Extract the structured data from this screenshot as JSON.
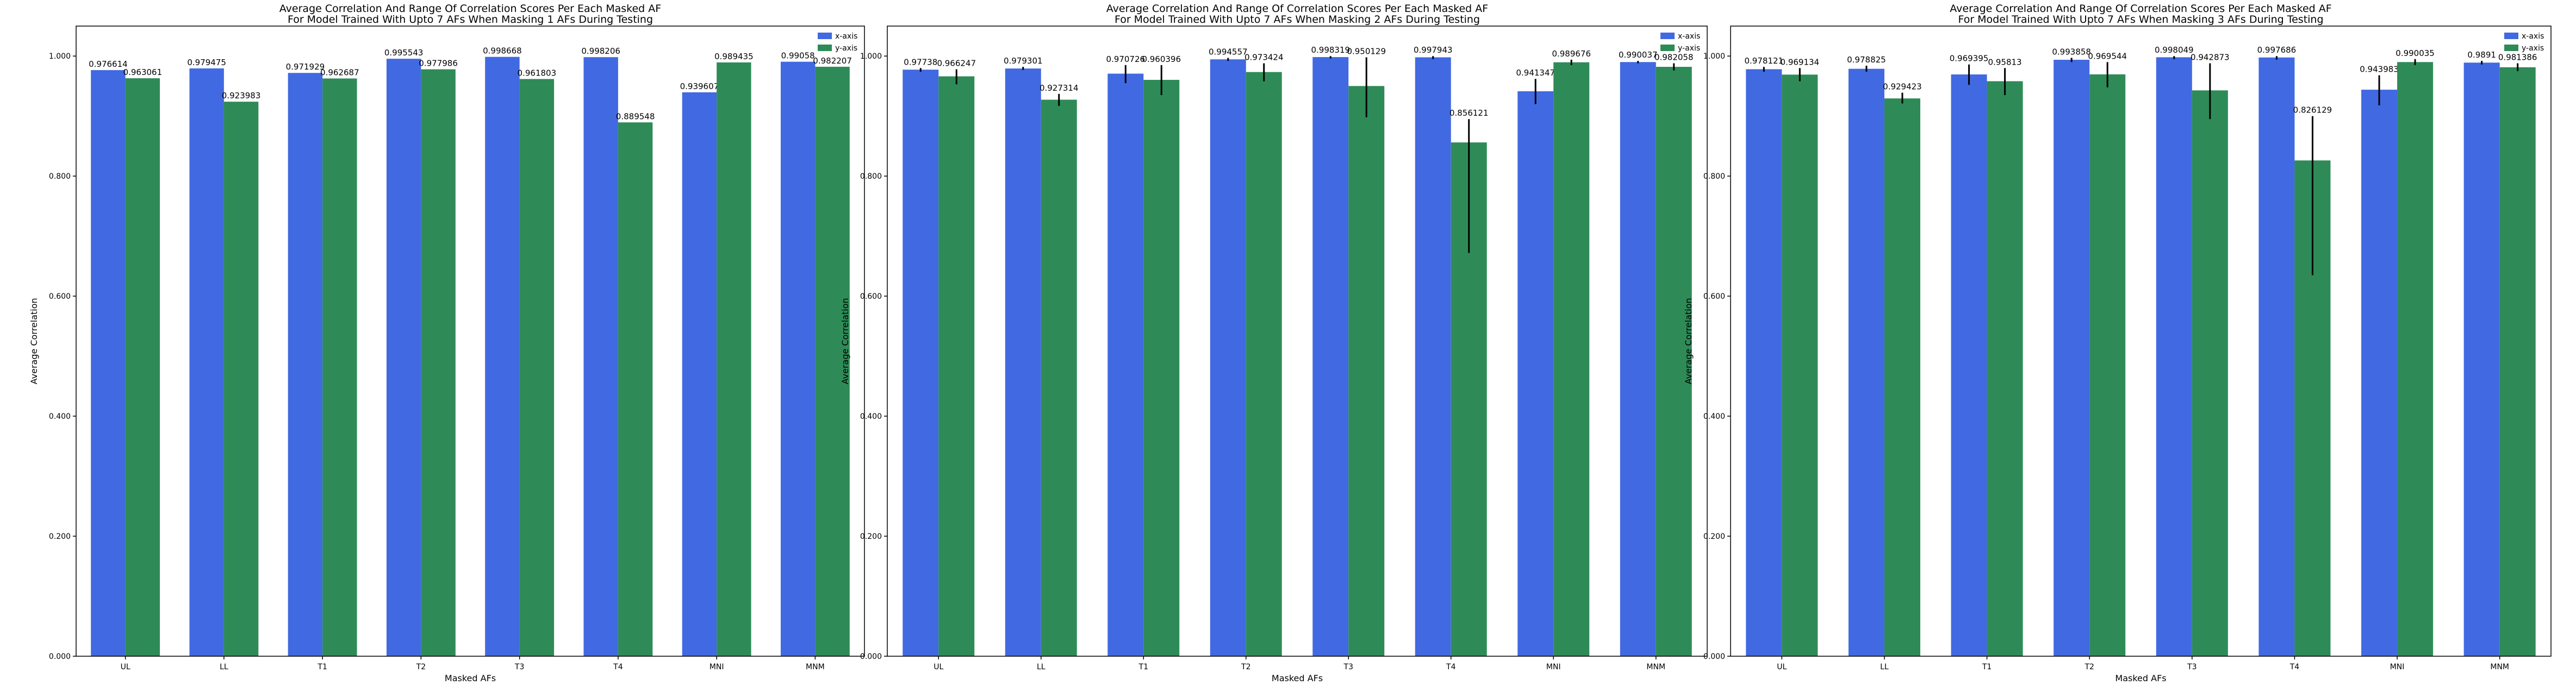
{
  "chart_data": [
    {
      "type": "bar",
      "title_lines": [
        "Average Correlation And Range Of Correlation Scores Per Each Masked AF",
        "For Model Trained With Upto 7 AFs When Masking 1 AFs During Testing"
      ],
      "xlabel": "Masked AFs",
      "ylabel": "Average Correlation",
      "ylim": [
        0,
        1.05
      ],
      "yticks": [
        "0.000",
        "0.200",
        "0.400",
        "0.600",
        "0.800",
        "1.000"
      ],
      "categories": [
        "UL",
        "LL",
        "T1",
        "T2",
        "T3",
        "T4",
        "MNI",
        "MNM"
      ],
      "legend_position": "top-right",
      "series": [
        {
          "name": "x-axis",
          "color": "#4169E1",
          "values": [
            0.976614,
            0.979475,
            0.971929,
            0.995543,
            0.998668,
            0.998206,
            0.939607,
            0.99058
          ],
          "labels": [
            "0.976614",
            "0.979475",
            "0.971929",
            "0.995543",
            "0.998668",
            "0.998206",
            "0.939607",
            "0.99058"
          ],
          "err_low": [
            0.976614,
            0.979475,
            0.971929,
            0.995543,
            0.998668,
            0.998206,
            0.939607,
            0.99058
          ],
          "err_high": [
            0.976614,
            0.979475,
            0.971929,
            0.995543,
            0.998668,
            0.998206,
            0.939607,
            0.99058
          ]
        },
        {
          "name": "y-axis",
          "color": "#2E8B57",
          "values": [
            0.963061,
            0.923983,
            0.962687,
            0.977986,
            0.961803,
            0.889548,
            0.989435,
            0.982207
          ],
          "labels": [
            "0.963061",
            "0.923983",
            "0.962687",
            "0.977986",
            "0.961803",
            "0.889548",
            "0.989435",
            "0.982207"
          ],
          "err_low": [
            0.963061,
            0.923983,
            0.962687,
            0.977986,
            0.961803,
            0.889548,
            0.989435,
            0.982207
          ],
          "err_high": [
            0.963061,
            0.923983,
            0.962687,
            0.977986,
            0.961803,
            0.889548,
            0.989435,
            0.982207
          ]
        }
      ]
    },
    {
      "type": "bar",
      "title_lines": [
        "Average Correlation And Range Of Correlation Scores Per Each Masked AF",
        "For Model Trained With Upto 7 AFs When Masking 2 AFs During Testing"
      ],
      "xlabel": "Masked AFs",
      "ylabel": "Average Correlation",
      "ylim": [
        0,
        1.05
      ],
      "yticks": [
        "0.000",
        "0.200",
        "0.400",
        "0.600",
        "0.800",
        "1.000"
      ],
      "categories": [
        "UL",
        "LL",
        "T1",
        "T2",
        "T3",
        "T4",
        "MNI",
        "MNM"
      ],
      "legend_position": "top-right",
      "series": [
        {
          "name": "x-axis",
          "color": "#4169E1",
          "values": [
            0.97738,
            0.979301,
            0.970726,
            0.994557,
            0.998319,
            0.997943,
            0.941347,
            0.990037
          ],
          "labels": [
            "0.97738",
            "0.979301",
            "0.970726",
            "0.994557",
            "0.998319",
            "0.997943",
            "0.941347",
            "0.990037"
          ],
          "err_low": [
            0.974,
            0.977,
            0.955,
            0.992,
            0.996,
            0.995,
            0.92,
            0.988
          ],
          "err_high": [
            0.98,
            0.982,
            0.985,
            0.997,
            1.0,
            1.0,
            0.962,
            0.992
          ]
        },
        {
          "name": "y-axis",
          "color": "#2E8B57",
          "values": [
            0.966247,
            0.927314,
            0.960396,
            0.973424,
            0.950129,
            0.856121,
            0.989676,
            0.982058
          ],
          "labels": [
            "0.966247",
            "0.927314",
            "0.960396",
            "0.973424",
            "0.950129",
            "0.856121",
            "0.989676",
            "0.982058"
          ],
          "err_low": [
            0.953,
            0.917,
            0.935,
            0.958,
            0.898,
            0.672,
            0.985,
            0.976
          ],
          "err_high": [
            0.978,
            0.937,
            0.985,
            0.988,
            0.998,
            0.895,
            0.994,
            0.988
          ]
        }
      ]
    },
    {
      "type": "bar",
      "title_lines": [
        "Average Correlation And Range Of Correlation Scores Per Each Masked AF",
        "For Model Trained With Upto 7 AFs When Masking 3 AFs During Testing"
      ],
      "xlabel": "Masked AFs",
      "ylabel": "Average Correlation",
      "ylim": [
        0,
        1.05
      ],
      "yticks": [
        "0.000",
        "0.200",
        "0.400",
        "0.600",
        "0.800",
        "1.000"
      ],
      "categories": [
        "UL",
        "LL",
        "T1",
        "T2",
        "T3",
        "T4",
        "MNI",
        "MNM"
      ],
      "legend_position": "top-right",
      "series": [
        {
          "name": "x-axis",
          "color": "#4169E1",
          "values": [
            0.978121,
            0.978825,
            0.969395,
            0.993858,
            0.998049,
            0.997686,
            0.943983,
            0.9891
          ],
          "labels": [
            "0.978121",
            "0.978825",
            "0.969395",
            "0.993858",
            "0.998049",
            "0.997686",
            "0.943983",
            "0.9891"
          ],
          "err_low": [
            0.974,
            0.974,
            0.952,
            0.99,
            0.995,
            0.994,
            0.918,
            0.986
          ],
          "err_high": [
            0.982,
            0.984,
            0.986,
            0.997,
            1.0,
            1.0,
            0.968,
            0.992
          ]
        },
        {
          "name": "y-axis",
          "color": "#2E8B57",
          "values": [
            0.969134,
            0.929423,
            0.95813,
            0.969544,
            0.942873,
            0.826129,
            0.990035,
            0.981386
          ],
          "labels": [
            "0.969134",
            "0.929423",
            "0.95813",
            "0.969544",
            "0.942873",
            "0.826129",
            "0.990035",
            "0.981386"
          ],
          "err_low": [
            0.958,
            0.921,
            0.935,
            0.948,
            0.895,
            0.635,
            0.985,
            0.975
          ],
          "err_high": [
            0.98,
            0.939,
            0.98,
            0.99,
            0.988,
            0.9,
            0.995,
            0.988
          ]
        }
      ]
    }
  ]
}
